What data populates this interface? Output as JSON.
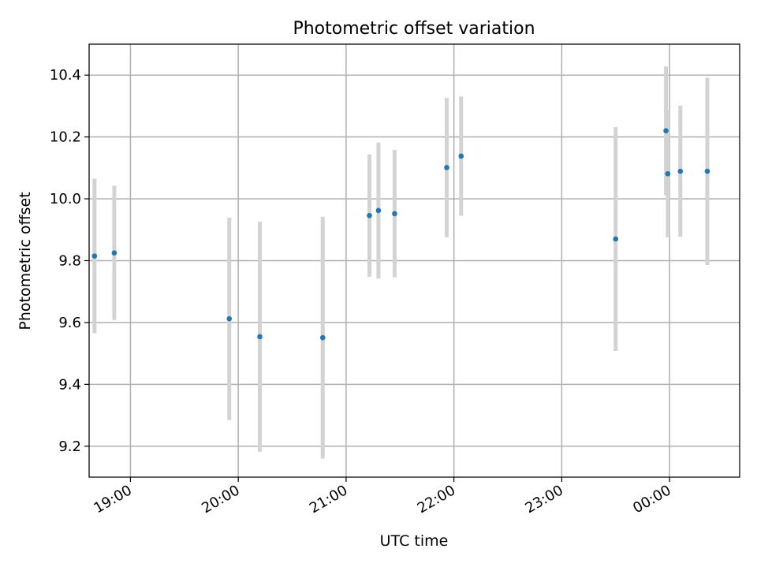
{
  "chart_data": {
    "type": "scatter",
    "title": "Photometric offset variation",
    "xlabel": "UTC time",
    "ylabel": "Photometric offset",
    "x_ticks": [
      "19:00",
      "20:00",
      "21:00",
      "22:00",
      "23:00",
      "00:00"
    ],
    "y_ticks": [
      "9.2",
      "9.4",
      "9.6",
      "9.8",
      "10.0",
      "10.2",
      "10.4"
    ],
    "xlim": [
      "18:37",
      "00:39"
    ],
    "ylim": [
      9.1,
      10.5
    ],
    "grid": true,
    "errorbar_color": "#d3d3d3",
    "point_color": "#1f77b4",
    "series": [
      {
        "points": [
          {
            "time": "18:40",
            "y": 9.815,
            "err": 0.25
          },
          {
            "time": "18:51",
            "y": 9.825,
            "err": 0.217
          },
          {
            "time": "19:55",
            "y": 9.612,
            "err": 0.327
          },
          {
            "time": "20:12",
            "y": 9.554,
            "err": 0.372
          },
          {
            "time": "20:47",
            "y": 9.551,
            "err": 0.391
          },
          {
            "time": "21:13",
            "y": 9.946,
            "err": 0.198
          },
          {
            "time": "21:18",
            "y": 9.962,
            "err": 0.22
          },
          {
            "time": "21:27",
            "y": 9.952,
            "err": 0.206
          },
          {
            "time": "21:56",
            "y": 10.101,
            "err": 0.225
          },
          {
            "time": "22:04",
            "y": 10.138,
            "err": 0.193
          },
          {
            "time": "23:30",
            "y": 9.87,
            "err": 0.362
          },
          {
            "time": "23:58",
            "y": 10.22,
            "err": 0.208
          },
          {
            "time": "23:59",
            "y": 10.081,
            "err": 0.205
          },
          {
            "time": "00:06",
            "y": 10.089,
            "err": 0.212
          },
          {
            "time": "00:21",
            "y": 10.089,
            "err": 0.303
          }
        ]
      }
    ]
  }
}
